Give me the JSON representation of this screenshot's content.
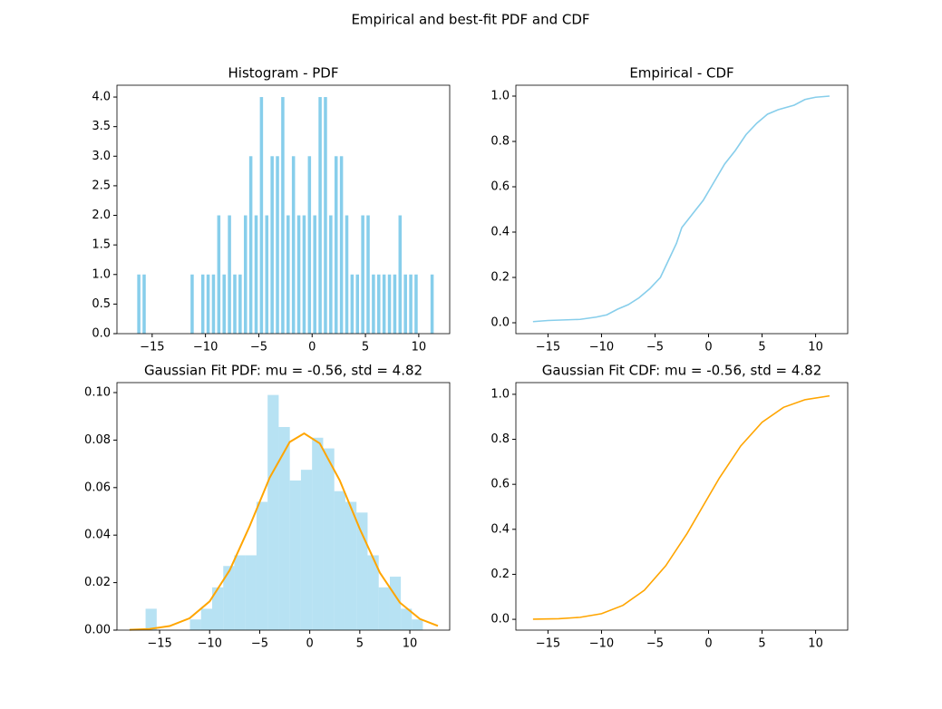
{
  "title": "Empirical and best-fit PDF and CDF",
  "chart_data": [
    {
      "type": "histogram",
      "title": "Histogram - PDF",
      "color": "#87ceeb",
      "alpha": 1,
      "bins": [
        -16.5,
        -16,
        -15.5,
        -15,
        -14.5,
        -14,
        -13.5,
        -13,
        -12.5,
        -12,
        -11.5,
        -11,
        -10.5,
        -10,
        -9.5,
        -9,
        -8.5,
        -8,
        -7.5,
        -7,
        -6.5,
        -6,
        -5.5,
        -5,
        -4.5,
        -4,
        -3.5,
        -3,
        -2.5,
        -2,
        -1.5,
        -1,
        -0.5,
        0,
        0.5,
        1,
        1.5,
        2,
        2.5,
        3,
        3.5,
        4,
        4.5,
        5,
        5.5,
        6,
        6.5,
        7,
        7.5,
        8,
        8.5,
        9,
        9.5,
        10,
        10.5,
        11,
        11.5
      ],
      "values": [
        1,
        1,
        0,
        0,
        0,
        0,
        0,
        0,
        0,
        0,
        1,
        0,
        1,
        1,
        1,
        2,
        1,
        2,
        1,
        1,
        2,
        3,
        2,
        4,
        2,
        3,
        3,
        4,
        2,
        3,
        2,
        2,
        3,
        2,
        4,
        4,
        2,
        3,
        3,
        2,
        1,
        1,
        2,
        2,
        1,
        1,
        1,
        1,
        1,
        2,
        1,
        1,
        1,
        0,
        0,
        1
      ],
      "xlim": [
        -18.3,
        12.9
      ],
      "ylim": [
        0,
        4.2
      ],
      "xticks": [
        {
          "value": -15,
          "label": "−15"
        },
        {
          "value": -10,
          "label": "−10"
        },
        {
          "value": -5,
          "label": "−5"
        },
        0,
        5,
        10
      ],
      "yticks": [
        {
          "value": 0,
          "label": "0.0"
        },
        0.5,
        {
          "value": 1,
          "label": "1.0"
        },
        1.5,
        {
          "value": 2,
          "label": "2.0"
        },
        2.5,
        {
          "value": 3,
          "label": "3.0"
        },
        3.5,
        {
          "value": 4,
          "label": "4.0"
        }
      ]
    },
    {
      "type": "line",
      "title": "Empirical - CDF",
      "color": "#87ceeb",
      "x": [
        -16.4,
        -15,
        -12,
        -10.5,
        -9.5,
        -8.5,
        -7.5,
        -6.5,
        -5.5,
        -4.5,
        -3.5,
        -3,
        -2.5,
        -1.5,
        -0.5,
        0.5,
        1.5,
        2.5,
        3.5,
        4.5,
        5.5,
        6.5,
        8,
        9,
        10,
        11.3
      ],
      "values": [
        0.005,
        0.01,
        0.015,
        0.025,
        0.035,
        0.06,
        0.08,
        0.11,
        0.15,
        0.2,
        0.3,
        0.35,
        0.42,
        0.48,
        0.54,
        0.62,
        0.7,
        0.76,
        0.83,
        0.88,
        0.92,
        0.94,
        0.96,
        0.985,
        0.995,
        1.0
      ],
      "xlim": [
        -18.0,
        13.0
      ],
      "ylim": [
        -0.048,
        1.048
      ],
      "xticks": [
        {
          "value": -15,
          "label": "−15"
        },
        {
          "value": -10,
          "label": "−10"
        },
        {
          "value": -5,
          "label": "−5"
        },
        0,
        5,
        10
      ],
      "yticks": [
        {
          "value": 0,
          "label": "0.0"
        },
        0.2,
        0.4,
        0.6,
        0.8,
        {
          "value": 1,
          "label": "1.0"
        }
      ]
    },
    {
      "type": "histogram",
      "title": "Gaussian Fit PDF: mu = -0.56,  std = 4.82",
      "color": "#87ceeb",
      "alpha": 0.6,
      "bins": [
        -16.4,
        -15.29,
        -14.18,
        -13.08,
        -11.97,
        -10.86,
        -9.75,
        -8.64,
        -7.54,
        -6.43,
        -5.32,
        -4.21,
        -3.1,
        -1.99,
        -0.88,
        0.23,
        1.34,
        2.45,
        3.56,
        4.67,
        5.78,
        6.89,
        8.0,
        9.1,
        10.2,
        11.3
      ],
      "values": [
        0.009,
        0,
        0,
        0,
        0.0045,
        0.009,
        0.018,
        0.027,
        0.0315,
        0.0315,
        0.054,
        0.099,
        0.0855,
        0.063,
        0.0675,
        0.081,
        0.0765,
        0.0585,
        0.054,
        0.0495,
        0.0315,
        0.018,
        0.0225,
        0.009,
        0.0045
      ],
      "overlay": {
        "type": "line",
        "color": "#ffa500",
        "x": [
          -18,
          -16,
          -14,
          -12,
          -10,
          -8,
          -6,
          -4,
          -2,
          -0.56,
          1,
          3,
          5,
          7,
          9,
          11,
          12.8
        ],
        "values": [
          0.00012,
          0.0005,
          0.0017,
          0.005,
          0.0121,
          0.0252,
          0.0438,
          0.0642,
          0.0792,
          0.0828,
          0.0786,
          0.063,
          0.0426,
          0.0242,
          0.0116,
          0.0047,
          0.0018
        ]
      },
      "xlim": [
        -19.26,
        13.98
      ],
      "ylim": [
        0,
        0.1042
      ],
      "xticks": [
        {
          "value": -15,
          "label": "−15"
        },
        {
          "value": -10,
          "label": "−10"
        },
        {
          "value": -5,
          "label": "−5"
        },
        0,
        5,
        10
      ],
      "yticks": [
        {
          "value": 0,
          "label": "0.00"
        },
        {
          "value": 0.02,
          "label": "0.02"
        },
        {
          "value": 0.04,
          "label": "0.04"
        },
        {
          "value": 0.06,
          "label": "0.06"
        },
        {
          "value": 0.08,
          "label": "0.08"
        },
        {
          "value": 0.1,
          "label": "0.10"
        }
      ]
    },
    {
      "type": "line",
      "title": "Gaussian Fit CDF: mu = -0.56,  std = 4.82",
      "color": "#ffa500",
      "x": [
        -16.4,
        -14,
        -12,
        -10,
        -8,
        -6,
        -4,
        -2,
        -0.56,
        1,
        3,
        5,
        7,
        9,
        11.3
      ],
      "values": [
        0.0005,
        0.0026,
        0.0089,
        0.025,
        0.062,
        0.129,
        0.238,
        0.382,
        0.5,
        0.627,
        0.77,
        0.876,
        0.942,
        0.976,
        0.993
      ],
      "xlim": [
        -18.0,
        13.0
      ],
      "ylim": [
        -0.048,
        1.052
      ],
      "xticks": [
        {
          "value": -15,
          "label": "−15"
        },
        {
          "value": -10,
          "label": "−10"
        },
        {
          "value": -5,
          "label": "−5"
        },
        0,
        5,
        10
      ],
      "yticks": [
        {
          "value": 0,
          "label": "0.0"
        },
        0.2,
        0.4,
        0.6,
        0.8,
        {
          "value": 1,
          "label": "1.0"
        }
      ]
    }
  ]
}
